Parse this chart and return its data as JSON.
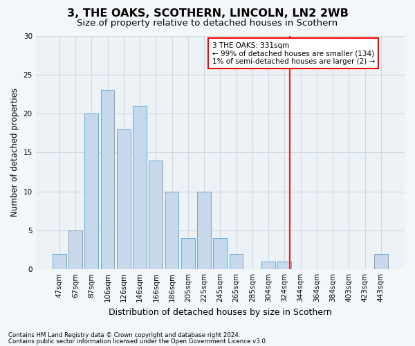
{
  "title": "3, THE OAKS, SCOTHERN, LINCOLN, LN2 2WB",
  "subtitle": "Size of property relative to detached houses in Scothern",
  "xlabel": "Distribution of detached houses by size in Scothern",
  "ylabel": "Number of detached properties",
  "categories": [
    "47sqm",
    "67sqm",
    "87sqm",
    "106sqm",
    "126sqm",
    "146sqm",
    "166sqm",
    "186sqm",
    "205sqm",
    "225sqm",
    "245sqm",
    "265sqm",
    "285sqm",
    "304sqm",
    "324sqm",
    "344sqm",
    "364sqm",
    "384sqm",
    "403sqm",
    "423sqm",
    "443sqm"
  ],
  "values": [
    2,
    5,
    20,
    23,
    18,
    21,
    14,
    10,
    4,
    10,
    4,
    2,
    0,
    1,
    1,
    0,
    0,
    0,
    0,
    0,
    2
  ],
  "bar_color": "#c8d8eb",
  "bar_edge_color": "#6aaad4",
  "bar_edge_width": 0.7,
  "grid_color": "#d0d8e0",
  "background_color": "#edf2f7",
  "fig_background_color": "#f4f7fa",
  "ylim": [
    0,
    30
  ],
  "yticks": [
    0,
    5,
    10,
    15,
    20,
    25,
    30
  ],
  "annotation_title": "3 THE OAKS: 331sqm",
  "annotation_line1": "← 99% of detached houses are smaller (134)",
  "annotation_line2": "1% of semi-detached houses are larger (2) →",
  "footnote1": "Contains HM Land Registry data © Crown copyright and database right 2024.",
  "footnote2": "Contains public sector information licensed under the Open Government Licence v3.0.",
  "title_fontsize": 11.5,
  "subtitle_fontsize": 9.5,
  "xlabel_fontsize": 9,
  "ylabel_fontsize": 8.5,
  "tick_fontsize": 7.5,
  "annot_fontsize": 7.5,
  "footnote_fontsize": 6.2
}
